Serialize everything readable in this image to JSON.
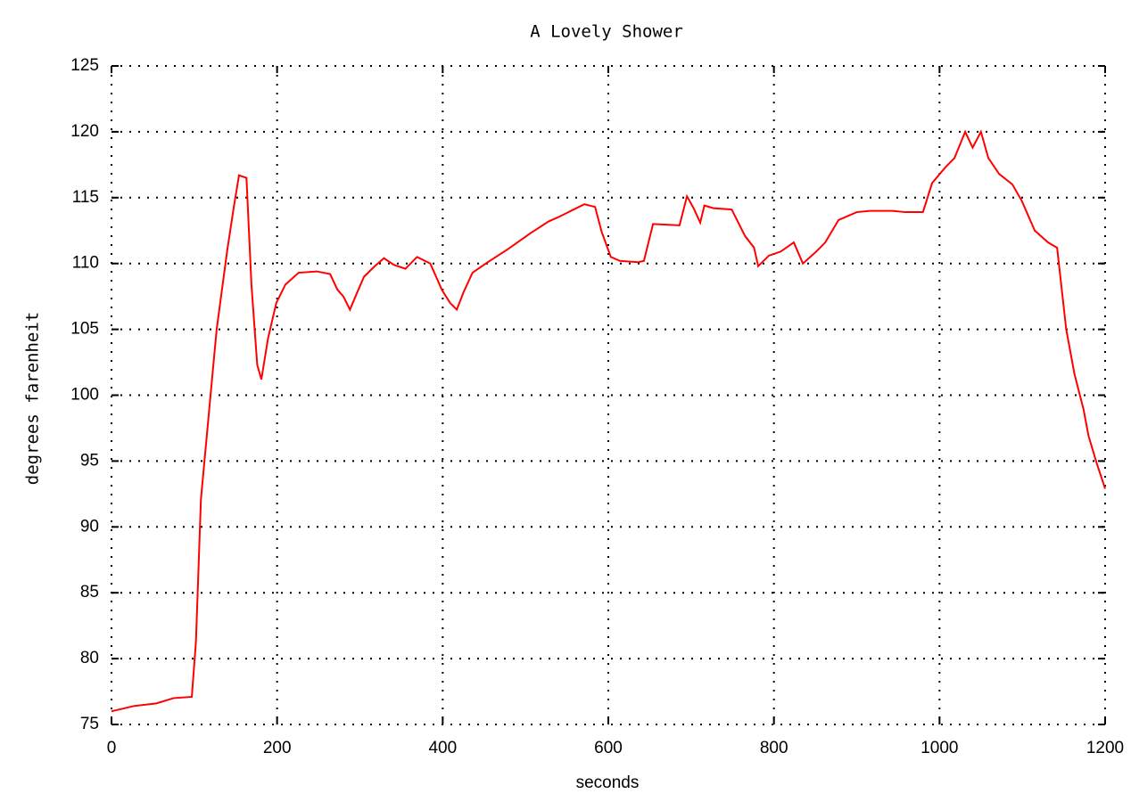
{
  "chart_data": {
    "type": "line",
    "title": "A Lovely Shower",
    "x_label": "seconds",
    "y_label": "degrees farenheit",
    "x": [
      0,
      27,
      54,
      75,
      97,
      102,
      108,
      118,
      127,
      140,
      148,
      154,
      163,
      169,
      176,
      181,
      189,
      199,
      210,
      226,
      248,
      264,
      273,
      280,
      288,
      296,
      305,
      318,
      329,
      341,
      355,
      369,
      385,
      399,
      409,
      417,
      425,
      436,
      452,
      479,
      506,
      528,
      539,
      555,
      571,
      584,
      592,
      603,
      614,
      636,
      643,
      654,
      686,
      695,
      703,
      711,
      716,
      727,
      749,
      765,
      776,
      781,
      794,
      808,
      824,
      835,
      851,
      862,
      878,
      900,
      916,
      943,
      959,
      980,
      991,
      1007,
      1018,
      1031,
      1040,
      1050,
      1059,
      1072,
      1088,
      1099,
      1115,
      1131,
      1142,
      1153,
      1163,
      1174,
      1180,
      1190,
      1200
    ],
    "series": [
      {
        "color": "#ff0000",
        "values": [
          76.0,
          76.4,
          76.6,
          77.0,
          77.1,
          81.3,
          92.1,
          98.9,
          105.0,
          111.1,
          114.4,
          116.7,
          116.5,
          108.4,
          102.3,
          101.2,
          104.3,
          107.0,
          108.4,
          109.3,
          109.4,
          109.2,
          108.0,
          107.5,
          106.5,
          107.7,
          109.0,
          109.8,
          110.4,
          109.9,
          109.6,
          110.5,
          110.0,
          108.0,
          107.0,
          106.5,
          107.8,
          109.3,
          110.0,
          111.1,
          112.3,
          113.2,
          113.5,
          114.0,
          114.5,
          114.3,
          112.4,
          110.5,
          110.2,
          110.1,
          110.2,
          113.0,
          112.9,
          115.1,
          114.2,
          113.1,
          114.4,
          114.2,
          114.1,
          112.1,
          111.2,
          109.8,
          110.6,
          110.9,
          111.6,
          110.0,
          110.9,
          111.6,
          113.3,
          113.9,
          114.0,
          114.0,
          113.9,
          113.9,
          116.1,
          117.3,
          118.0,
          120.0,
          118.8,
          120.0,
          118.0,
          116.8,
          116.0,
          114.8,
          112.5,
          111.6,
          111.2,
          105.0,
          101.6,
          98.9,
          96.9,
          94.8,
          92.9
        ]
      }
    ],
    "xlim": [
      0,
      1200
    ],
    "xticks": [
      0,
      200,
      400,
      600,
      800,
      1000,
      1200
    ],
    "ylim": [
      75,
      125
    ],
    "yticks": [
      75,
      80,
      85,
      90,
      95,
      100,
      105,
      110,
      115,
      120,
      125
    ],
    "grid": true
  }
}
